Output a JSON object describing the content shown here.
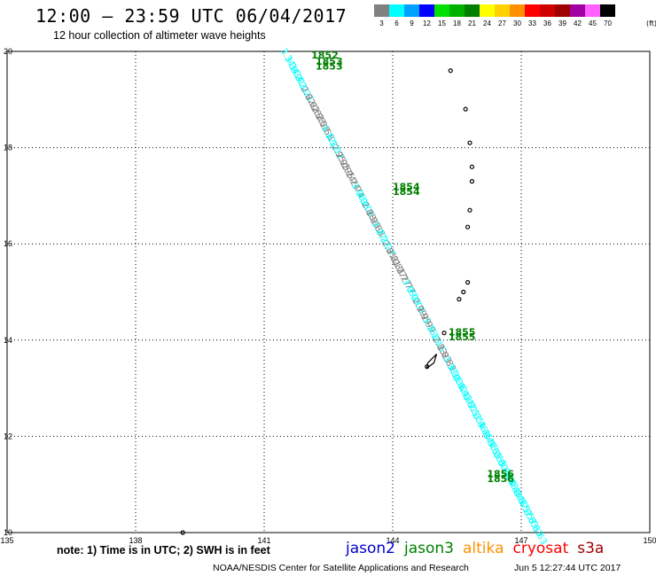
{
  "header": {
    "title": "12:00 – 23:59 UTC 06/04/2017",
    "subtitle": "12 hour collection of altimeter wave heights"
  },
  "legend": {
    "unit": "(ft)",
    "bins": [
      {
        "label": "3",
        "color": "#808080"
      },
      {
        "label": "6",
        "color": "#00ffff"
      },
      {
        "label": "9",
        "color": "#00a0ff"
      },
      {
        "label": "12",
        "color": "#0000ff"
      },
      {
        "label": "15",
        "color": "#00e000"
      },
      {
        "label": "18",
        "color": "#00b000"
      },
      {
        "label": "21",
        "color": "#008000"
      },
      {
        "label": "24",
        "color": "#ffff00"
      },
      {
        "label": "27",
        "color": "#ffd000"
      },
      {
        "label": "30",
        "color": "#ff9000"
      },
      {
        "label": "33",
        "color": "#ff0000"
      },
      {
        "label": "36",
        "color": "#d00000"
      },
      {
        "label": "39",
        "color": "#a00000"
      },
      {
        "label": "42",
        "color": "#a000a0"
      },
      {
        "label": "45",
        "color": "#ff60ff"
      },
      {
        "label": "70",
        "color": "#000000"
      }
    ]
  },
  "map": {
    "lon_range": [
      135,
      150
    ],
    "lat_range": [
      10,
      20
    ],
    "lon_ticks": [
      "135",
      "138",
      "141",
      "144",
      "147",
      "150"
    ],
    "lat_ticks": [
      "10",
      "12",
      "14",
      "16",
      "18",
      "20"
    ],
    "grid": "dotted",
    "track": {
      "satellite": "jason3",
      "start": [
        141.4,
        20.0
      ],
      "end": [
        147.2,
        10.2
      ],
      "samples": [
        {
          "lat": 19.9,
          "value": "3.34",
          "color": "#00ffff"
        },
        {
          "lat": 19.5,
          "value": "3.21",
          "color": "#00ffff"
        },
        {
          "lat": 19.1,
          "value": "2.62",
          "color": "#808080"
        },
        {
          "lat": 18.7,
          "value": "2.58",
          "color": "#808080"
        },
        {
          "lat": 18.3,
          "value": "3.12",
          "color": "#00ffff"
        },
        {
          "lat": 17.9,
          "value": "2.95",
          "color": "#808080"
        },
        {
          "lat": 17.5,
          "value": "2.74",
          "color": "#808080"
        },
        {
          "lat": 17.1,
          "value": "3.06",
          "color": "#00ffff"
        },
        {
          "lat": 16.7,
          "value": "2.88",
          "color": "#808080"
        },
        {
          "lat": 16.3,
          "value": "3.27",
          "color": "#00ffff"
        },
        {
          "lat": 15.9,
          "value": "2.81",
          "color": "#808080"
        },
        {
          "lat": 15.5,
          "value": "2.77",
          "color": "#808080"
        },
        {
          "lat": 15.1,
          "value": "3.09",
          "color": "#00ffff"
        },
        {
          "lat": 14.7,
          "value": "2.99",
          "color": "#808080"
        },
        {
          "lat": 14.3,
          "value": "3.15",
          "color": "#00ffff"
        },
        {
          "lat": 13.9,
          "value": "2.83",
          "color": "#808080"
        },
        {
          "lat": 13.5,
          "value": "3.38",
          "color": "#00ffff"
        },
        {
          "lat": 13.1,
          "value": "3.42",
          "color": "#00ffff"
        },
        {
          "lat": 12.7,
          "value": "3.51",
          "color": "#00ffff"
        },
        {
          "lat": 12.3,
          "value": "3.46",
          "color": "#00ffff"
        },
        {
          "lat": 11.9,
          "value": "3.55",
          "color": "#00ffff"
        },
        {
          "lat": 11.5,
          "value": "3.60",
          "color": "#00ffff"
        },
        {
          "lat": 11.1,
          "value": "3.48",
          "color": "#00ffff"
        },
        {
          "lat": 10.7,
          "value": "3.57",
          "color": "#00ffff"
        },
        {
          "lat": 10.3,
          "value": "3.63",
          "color": "#00ffff"
        }
      ]
    },
    "time_labels": [
      {
        "lat": 19.85,
        "lon": 142.1,
        "text": "1852"
      },
      {
        "lat": 19.72,
        "lon": 142.2,
        "text": "1853"
      },
      {
        "lat": 19.62,
        "lon": 142.2,
        "text": "1853"
      },
      {
        "lat": 17.12,
        "lon": 144.0,
        "text": "1854"
      },
      {
        "lat": 17.02,
        "lon": 144.0,
        "text": "1854"
      },
      {
        "lat": 14.1,
        "lon": 145.3,
        "text": "1855"
      },
      {
        "lat": 14.0,
        "lon": 145.3,
        "text": "1855"
      },
      {
        "lat": 11.15,
        "lon": 146.2,
        "text": "1856"
      },
      {
        "lat": 11.05,
        "lon": 146.2,
        "text": "1856"
      }
    ],
    "islands": [
      {
        "lon": 145.35,
        "lat": 19.6
      },
      {
        "lon": 145.7,
        "lat": 18.8
      },
      {
        "lon": 145.8,
        "lat": 18.1
      },
      {
        "lon": 145.85,
        "lat": 17.6
      },
      {
        "lon": 145.85,
        "lat": 17.3
      },
      {
        "lon": 145.8,
        "lat": 16.7
      },
      {
        "lon": 145.75,
        "lat": 16.35
      },
      {
        "lon": 145.75,
        "lat": 15.2
      },
      {
        "lon": 145.65,
        "lat": 15.0
      },
      {
        "lon": 145.55,
        "lat": 14.85
      },
      {
        "lon": 145.2,
        "lat": 14.15
      },
      {
        "lon": 144.8,
        "lat": 13.45
      },
      {
        "lon": 139.1,
        "lat": 10.0
      }
    ]
  },
  "footer": {
    "note": "note:  1) Time is in UTC;  2) SWH is in feet",
    "satellites": [
      {
        "name": "jason2",
        "color": "#0000cc"
      },
      {
        "name": "jason3",
        "color": "#008000"
      },
      {
        "name": "altika",
        "color": "#ff9000"
      },
      {
        "name": "cryosat",
        "color": "#ff0000"
      },
      {
        "name": "s3a",
        "color": "#a00000"
      }
    ],
    "credit": "NOAA/NESDIS Center for Satellite Applications and Research",
    "timestamp": "Jun  5 12:27:44 UTC 2017"
  }
}
